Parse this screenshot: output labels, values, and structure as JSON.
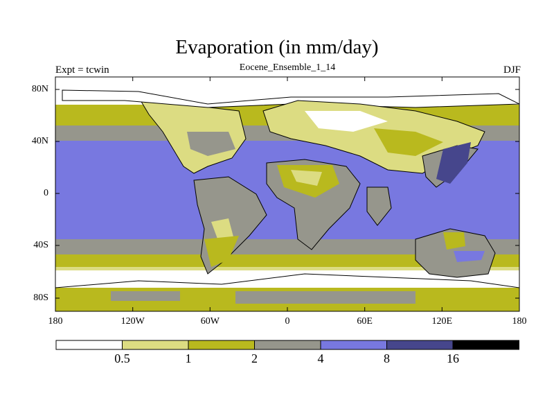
{
  "title": "Evaporation (in mm/day)",
  "subtitle_left": "Expt = tcwin",
  "subtitle_center": "Eocene_Ensemble_1_14",
  "subtitle_right": "DJF",
  "lat_ticks": [
    "80N",
    "40N",
    "0",
    "40S",
    "80S"
  ],
  "lon_ticks": [
    "180",
    "120W",
    "60W",
    "0",
    "60E",
    "120E",
    "180"
  ],
  "legend": {
    "labels": [
      "0.5",
      "1",
      "2",
      "4",
      "8",
      "16"
    ],
    "colors": [
      "#ffffff",
      "#dcdc82",
      "#b9b91e",
      "#96968c",
      "#7878e0",
      "#46468c",
      "#000000"
    ]
  },
  "chart_data": {
    "type": "heatmap",
    "title": "Evaporation (in mm/day)",
    "variable": "Evaporation",
    "units": "mm/day",
    "experiment": "Expt = tcwin",
    "ensemble": "Eocene_Ensemble_1_14",
    "season": "DJF",
    "x_ticks": [
      "180",
      "120W",
      "60W",
      "0",
      "60E",
      "120E",
      "180"
    ],
    "y_ticks": [
      "80N",
      "40N",
      "0",
      "40S",
      "80S"
    ],
    "contour_levels": [
      0.5,
      1,
      2,
      4,
      8,
      16
    ],
    "bands": [
      {
        "range": "< 0.5",
        "color": "#ffffff"
      },
      {
        "range": "0.5 - 1",
        "color": "#dcdc82"
      },
      {
        "range": "1 - 2",
        "color": "#b9b91e"
      },
      {
        "range": "2 - 4",
        "color": "#96968c"
      },
      {
        "range": "4 - 8",
        "color": "#7878e0"
      },
      {
        "range": "8 - 16",
        "color": "#46468c"
      },
      {
        "range": "> 16",
        "color": "#000000"
      }
    ]
  }
}
